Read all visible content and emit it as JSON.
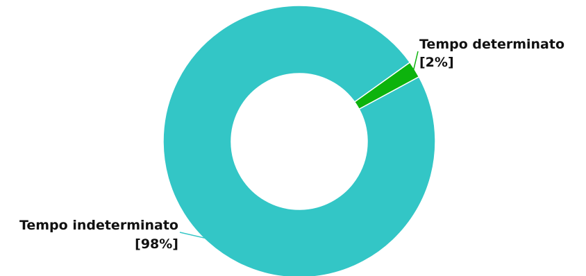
{
  "chart_data": {
    "type": "pie",
    "donut": true,
    "title": "",
    "slices": [
      {
        "label": "Tempo indeterminato",
        "percent_label": "[98%]",
        "value": 98,
        "color": "#33C6C6"
      },
      {
        "label": "Tempo determinato",
        "percent_label": "[2%]",
        "value": 2,
        "color": "#0DB30D"
      }
    ],
    "legend": "none",
    "labels": "outside with leader lines"
  }
}
